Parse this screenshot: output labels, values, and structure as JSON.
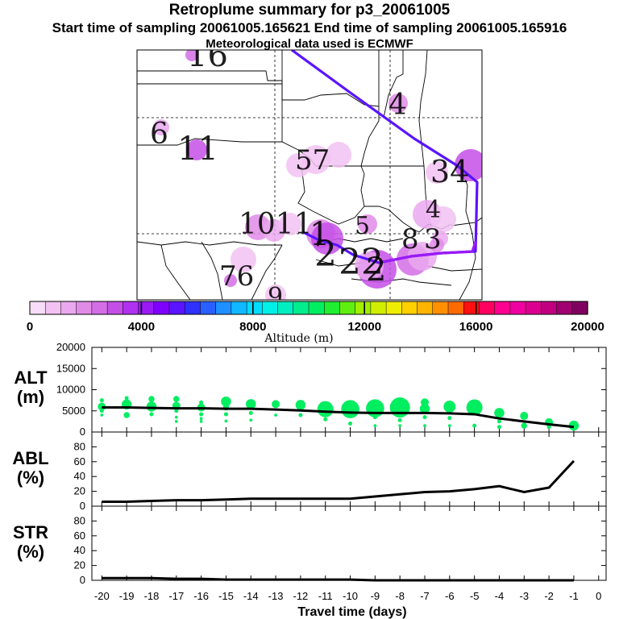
{
  "header": {
    "title": "Retroplume summary for p3_20061005",
    "subtitle": "Start time of sampling 20061005.165621      End time of sampling 20061005.165916",
    "met": "Meteorological data used is ECMWF"
  },
  "colorbar": {
    "title": "Altitude (m)",
    "ticks": [
      "0",
      "4000",
      "8000",
      "12000",
      "16000",
      "20000"
    ],
    "colors": [
      "#f8ddf8",
      "#f2c2f2",
      "#eaa8ee",
      "#e08be6",
      "#d46ee6",
      "#c44fe6",
      "#b032f0",
      "#9a1af6",
      "#8000ff",
      "#5a14ff",
      "#3030ff",
      "#2a60ff",
      "#1e90ff",
      "#10b8ff",
      "#00dcff",
      "#00f0e8",
      "#00eec0",
      "#00ee8e",
      "#00ee60",
      "#20ee30",
      "#60ee10",
      "#a0ee00",
      "#d0ee00",
      "#f0ee00",
      "#ffd000",
      "#ffb400",
      "#ff9000",
      "#ff6a00",
      "#ff1010",
      "#ff0060",
      "#ff0090",
      "#f000a0",
      "#dc0090",
      "#c00080",
      "#a00070",
      "#800060"
    ]
  },
  "map": {
    "labels": [
      {
        "text": "16",
        "size": 40
      },
      {
        "text": "6",
        "size": 36
      },
      {
        "text": "11",
        "size": 40
      },
      {
        "text": "57",
        "size": 34
      },
      {
        "text": "4",
        "size": 36
      },
      {
        "text": "34",
        "size": 38
      },
      {
        "text": "4",
        "size": 30
      },
      {
        "text": "1011",
        "size": 36
      },
      {
        "text": "1",
        "size": 40
      },
      {
        "text": "5",
        "size": 30
      },
      {
        "text": "8",
        "size": 34
      },
      {
        "text": "3",
        "size": 34
      },
      {
        "text": "2",
        "size": 44
      },
      {
        "text": "22",
        "size": 44
      },
      {
        "text": "2",
        "size": 40
      },
      {
        "text": "76",
        "size": 34
      },
      {
        "text": "9",
        "size": 30
      }
    ],
    "blobs": [
      {
        "alt": 2500,
        "size": 8
      },
      {
        "alt": 1500,
        "size": 10
      },
      {
        "alt": 2800,
        "size": 13
      },
      {
        "alt": 700,
        "size": 16
      },
      {
        "alt": 2200,
        "size": 12
      },
      {
        "alt": 3300,
        "size": 20
      },
      {
        "alt": 900,
        "size": 18
      },
      {
        "alt": 1100,
        "size": 15
      },
      {
        "alt": 600,
        "size": 14
      },
      {
        "alt": 1200,
        "size": 18
      },
      {
        "alt": 1000,
        "size": 16
      },
      {
        "alt": 1800,
        "size": 16
      },
      {
        "alt": 1500,
        "size": 14
      },
      {
        "alt": 1000,
        "size": 14
      },
      {
        "alt": 2200,
        "size": 18
      },
      {
        "alt": 2800,
        "size": 20
      },
      {
        "alt": 3100,
        "size": 24
      },
      {
        "alt": 1200,
        "size": 18
      },
      {
        "alt": 2400,
        "size": 20
      },
      {
        "alt": 1500,
        "size": 18
      },
      {
        "alt": 1800,
        "size": 12
      },
      {
        "alt": 1300,
        "size": 10
      },
      {
        "alt": 2500,
        "size": 8
      },
      {
        "alt": 600,
        "size": 16
      },
      {
        "alt": 900,
        "size": 13
      },
      {
        "alt": 1800,
        "size": 9
      }
    ]
  },
  "chart_data": [
    {
      "type": "scatter",
      "panel": "ALT",
      "ylabel_lines": [
        "ALT",
        "(m)"
      ],
      "ylim": [
        0,
        20000
      ],
      "yticks": [
        "0",
        "5000",
        "10000",
        "15000",
        "20000"
      ],
      "line_x": [
        -20,
        -19,
        -18,
        -17,
        -16,
        -15,
        -14,
        -13,
        -12,
        -11,
        -10,
        -9,
        -8,
        -7,
        -6,
        -5,
        -4,
        -3,
        -2,
        -1
      ],
      "line_y": [
        5800,
        5800,
        5700,
        5600,
        5600,
        5500,
        5500,
        5300,
        5100,
        4800,
        4600,
        4500,
        4500,
        4500,
        4400,
        4200,
        3200,
        2500,
        1800,
        1200
      ],
      "points": [
        {
          "x": -20,
          "y": 6000,
          "s": 4
        },
        {
          "x": -20,
          "y": 7500,
          "s": 2
        },
        {
          "x": -20,
          "y": 5000,
          "s": 2
        },
        {
          "x": -20,
          "y": 4000,
          "s": 1.5
        },
        {
          "x": -19,
          "y": 6500,
          "s": 5
        },
        {
          "x": -19,
          "y": 8000,
          "s": 2
        },
        {
          "x": -19,
          "y": 4000,
          "s": 3
        },
        {
          "x": -18,
          "y": 7800,
          "s": 3
        },
        {
          "x": -18,
          "y": 6000,
          "s": 5
        },
        {
          "x": -18,
          "y": 4200,
          "s": 2
        },
        {
          "x": -17,
          "y": 7800,
          "s": 3
        },
        {
          "x": -17,
          "y": 6200,
          "s": 4
        },
        {
          "x": -17,
          "y": 5000,
          "s": 2
        },
        {
          "x": -17,
          "y": 3500,
          "s": 1.5
        },
        {
          "x": -17,
          "y": 2500,
          "s": 1.5
        },
        {
          "x": -16,
          "y": 7000,
          "s": 2
        },
        {
          "x": -16,
          "y": 5800,
          "s": 4
        },
        {
          "x": -16,
          "y": 4200,
          "s": 2
        },
        {
          "x": -16,
          "y": 3200,
          "s": 1.5
        },
        {
          "x": -16,
          "y": 2500,
          "s": 1.5
        },
        {
          "x": -15,
          "y": 7200,
          "s": 5
        },
        {
          "x": -15,
          "y": 5800,
          "s": 3
        },
        {
          "x": -15,
          "y": 4200,
          "s": 2
        },
        {
          "x": -15,
          "y": 2600,
          "s": 1.5
        },
        {
          "x": -14,
          "y": 6600,
          "s": 5
        },
        {
          "x": -14,
          "y": 4500,
          "s": 2
        },
        {
          "x": -14,
          "y": 2800,
          "s": 1.5
        },
        {
          "x": -13,
          "y": 6600,
          "s": 4
        },
        {
          "x": -13,
          "y": 4000,
          "s": 1.5
        },
        {
          "x": -12,
          "y": 6400,
          "s": 5
        },
        {
          "x": -12,
          "y": 4000,
          "s": 2
        },
        {
          "x": -11,
          "y": 5400,
          "s": 8
        },
        {
          "x": -11,
          "y": 3000,
          "s": 2
        },
        {
          "x": -10,
          "y": 5400,
          "s": 9
        },
        {
          "x": -10,
          "y": 2000,
          "s": 2
        },
        {
          "x": -9,
          "y": 5600,
          "s": 9
        },
        {
          "x": -9,
          "y": 3500,
          "s": 2
        },
        {
          "x": -9,
          "y": 1500,
          "s": 1.5
        },
        {
          "x": -8,
          "y": 5800,
          "s": 10
        },
        {
          "x": -8,
          "y": 2800,
          "s": 2
        },
        {
          "x": -8,
          "y": 1500,
          "s": 1.5
        },
        {
          "x": -7,
          "y": 7000,
          "s": 4
        },
        {
          "x": -7,
          "y": 5500,
          "s": 5
        },
        {
          "x": -7,
          "y": 3500,
          "s": 2
        },
        {
          "x": -7,
          "y": 1500,
          "s": 1.5
        },
        {
          "x": -6,
          "y": 6000,
          "s": 6
        },
        {
          "x": -6,
          "y": 3300,
          "s": 2
        },
        {
          "x": -6,
          "y": 1500,
          "s": 1.5
        },
        {
          "x": -5,
          "y": 5800,
          "s": 8
        },
        {
          "x": -5,
          "y": 1500,
          "s": 2
        },
        {
          "x": -4,
          "y": 4500,
          "s": 5
        },
        {
          "x": -4,
          "y": 2500,
          "s": 2
        },
        {
          "x": -4,
          "y": 1200,
          "s": 2
        },
        {
          "x": -3,
          "y": 3800,
          "s": 4
        },
        {
          "x": -3,
          "y": 1500,
          "s": 3
        },
        {
          "x": -2,
          "y": 2300,
          "s": 4
        },
        {
          "x": -2,
          "y": 1200,
          "s": 2
        },
        {
          "x": -1,
          "y": 1500,
          "s": 5
        }
      ],
      "point_color": "#00ee60"
    },
    {
      "type": "line",
      "panel": "ABL",
      "ylabel_lines": [
        "ABL",
        "(%)"
      ],
      "ylim": [
        0,
        100
      ],
      "yticks": [
        "0",
        "20",
        "40",
        "60",
        "80"
      ],
      "x": [
        -20,
        -19,
        -18,
        -17,
        -16,
        -15,
        -14,
        -13,
        -12,
        -11,
        -10,
        -9,
        -8,
        -7,
        -6,
        -5,
        -4,
        -3,
        -2,
        -1
      ],
      "y": [
        6,
        6,
        7,
        8,
        8,
        9,
        10,
        10,
        10,
        10,
        10,
        13,
        16,
        19,
        20,
        23,
        27,
        19,
        25,
        61
      ]
    },
    {
      "type": "line",
      "panel": "STR",
      "ylabel_lines": [
        "STR",
        "(%)"
      ],
      "ylim": [
        0,
        100
      ],
      "yticks": [
        "0",
        "20",
        "40",
        "60",
        "80"
      ],
      "x": [
        -20,
        -19,
        -18,
        -17,
        -16,
        -15,
        -14,
        -13,
        -12,
        -11,
        -10,
        -9,
        -8,
        -7,
        -6,
        -5,
        -4,
        -3,
        -2,
        -1
      ],
      "y": [
        3,
        3,
        3,
        2,
        2,
        1,
        1,
        1,
        1,
        1,
        1,
        0,
        0,
        0,
        0,
        0,
        0,
        0,
        0,
        0
      ]
    }
  ],
  "xaxis": {
    "label": "Travel time (days)",
    "ticks": [
      "-20",
      "-19",
      "-18",
      "-17",
      "-16",
      "-15",
      "-14",
      "-13",
      "-12",
      "-11",
      "-10",
      "-9",
      "-8",
      "-7",
      "-6",
      "-5",
      "-4",
      "-3",
      "-2",
      "-1",
      "0"
    ]
  }
}
